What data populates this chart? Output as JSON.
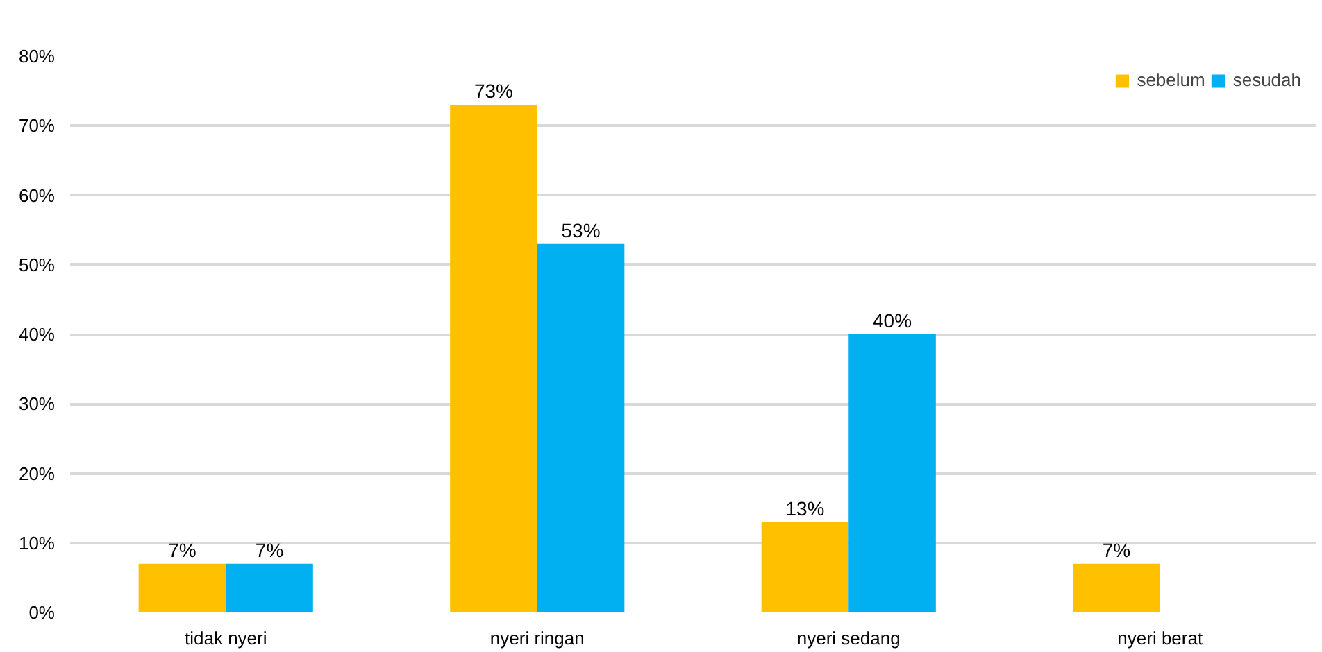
{
  "chart_data": {
    "type": "bar",
    "categories": [
      "tidak nyeri",
      "nyeri ringan",
      "nyeri sedang",
      "nyeri berat"
    ],
    "series": [
      {
        "name": "sebelum",
        "color": "#ffc000",
        "values": [
          7,
          73,
          13,
          7
        ],
        "value_labels": [
          "7%",
          "73%",
          "13%",
          "7%"
        ]
      },
      {
        "name": "sesudah",
        "color": "#00b0f0",
        "values": [
          7,
          53,
          40,
          null
        ],
        "value_labels": [
          "7%",
          "53%",
          "40%",
          null
        ]
      }
    ],
    "ylim": [
      0,
      80
    ],
    "yticks": [
      {
        "value": 0,
        "label": "0%"
      },
      {
        "value": 10,
        "label": "10%"
      },
      {
        "value": 20,
        "label": "20%"
      },
      {
        "value": 30,
        "label": "30%"
      },
      {
        "value": 40,
        "label": "40%"
      },
      {
        "value": 50,
        "label": "50%"
      },
      {
        "value": 60,
        "label": "60%"
      },
      {
        "value": 70,
        "label": "70%"
      },
      {
        "value": 80,
        "label": "80%"
      }
    ],
    "grid": "y",
    "legend": "top right"
  }
}
